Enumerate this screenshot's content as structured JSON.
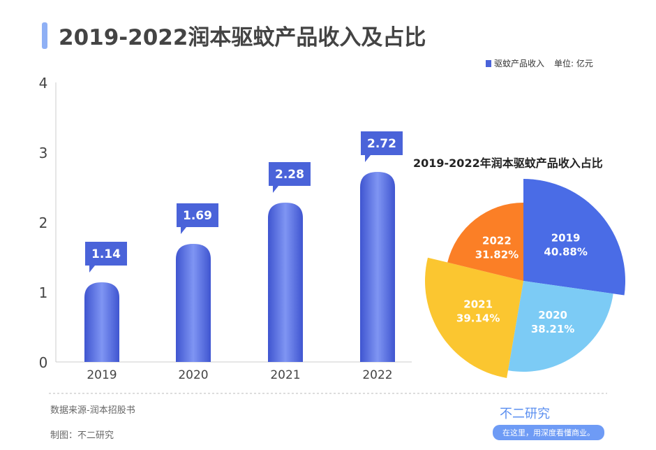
{
  "title": "2019-2022润本驱蚊产品收入及占比",
  "legend": {
    "series": "驱蚊产品收入",
    "unit": "单位: 亿元",
    "color": "#4a63d9"
  },
  "footer": {
    "source": "数据来源-润本招股书",
    "maker": "制图：不二研究",
    "brand": "不二研究",
    "slogan": "在这里，用深度看懂商业。"
  },
  "chart_data": [
    {
      "type": "bar",
      "categories": [
        "2019",
        "2020",
        "2021",
        "2022"
      ],
      "values": [
        1.14,
        1.69,
        2.28,
        2.72
      ],
      "series": [
        {
          "name": "驱蚊产品收入",
          "values": [
            1.14,
            1.69,
            2.28,
            2.72
          ]
        }
      ],
      "ylim": [
        0,
        4
      ],
      "yticks": [
        "0",
        "1",
        "2",
        "3",
        "4"
      ],
      "grid": false,
      "legend": "top-right",
      "color": "#4a63d9"
    },
    {
      "type": "pie",
      "title": "2019-2022年润本驱蚊产品收入占比",
      "labels": [
        "2019",
        "2020",
        "2021",
        "2022"
      ],
      "values": [
        40.88,
        38.21,
        39.14,
        31.82
      ],
      "value_labels": [
        "40.88%",
        "38.21%",
        "39.14%",
        "31.82%"
      ],
      "colors": [
        "#4a6ce6",
        "#7ccbf5",
        "#fbc630",
        "#fb7f26"
      ]
    }
  ]
}
